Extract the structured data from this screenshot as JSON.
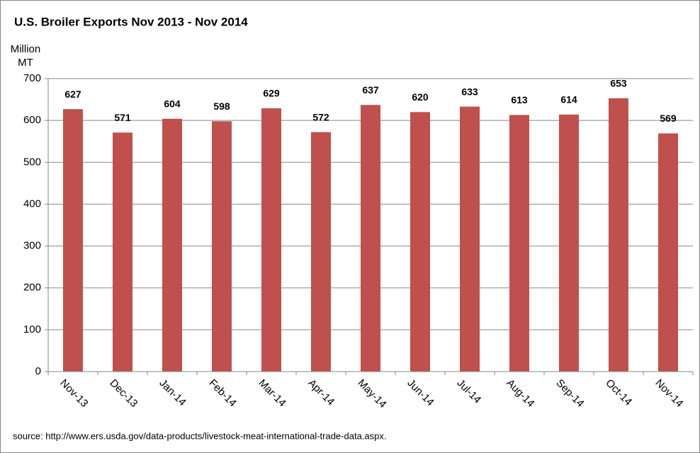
{
  "chart_data": {
    "type": "bar",
    "title": "U.S. Broiler Exports Nov 2013 - Nov 2014",
    "y_label": "Million MT",
    "categories": [
      "Nov-13",
      "Dec-13",
      "Jan-14",
      "Feb-14",
      "Mar-14",
      "Apr-14",
      "May-14",
      "Jun-14",
      "Jul-14",
      "Aug-14",
      "Sep-14",
      "Oct-14",
      "Nov-14"
    ],
    "values": [
      627,
      571,
      604,
      598,
      629,
      572,
      637,
      620,
      633,
      613,
      614,
      653,
      569
    ],
    "color": "#c0504d",
    "ylim": [
      0,
      700
    ],
    "yticks": [
      0,
      100,
      200,
      300,
      400,
      500,
      600,
      700
    ],
    "grid": true,
    "source": "source: http://www.ers.usda.gov/data-products/livestock-meat-international-trade-data.aspx."
  }
}
